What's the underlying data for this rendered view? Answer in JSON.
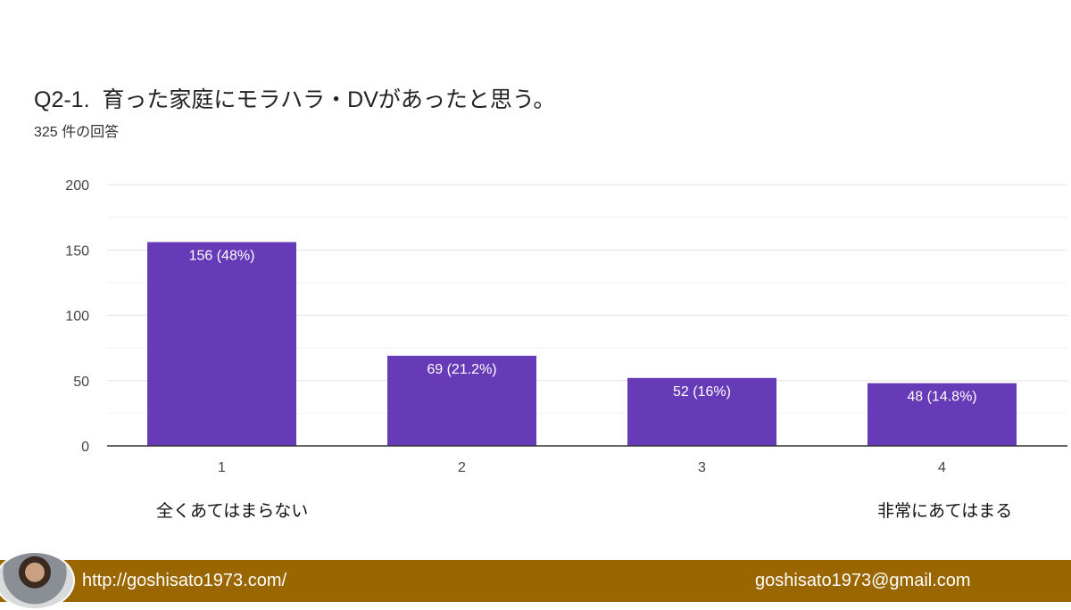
{
  "chart_data": {
    "type": "bar",
    "title": "Q2-1.  育った家庭にモラハラ・DVがあったと思う。",
    "subtitle": "325 件の回答",
    "categories": [
      "1",
      "2",
      "3",
      "4"
    ],
    "values": [
      156,
      69,
      52,
      48
    ],
    "data_labels": [
      "156 (48%)",
      "69 (21.2%)",
      "52 (16%)",
      "48 (14.8%)"
    ],
    "yticks": [
      "0",
      "50",
      "100",
      "150",
      "200"
    ],
    "ylim": [
      0,
      200
    ],
    "grid": true,
    "scale_labels": {
      "low": "全くあてはまらない",
      "high": "非常にあてはまる"
    },
    "colors": {
      "bar": "#673ab7",
      "footer": "#9a6600"
    }
  },
  "footer": {
    "website": "http://goshisato1973.com/",
    "email": "goshisato1973@gmail.com"
  }
}
